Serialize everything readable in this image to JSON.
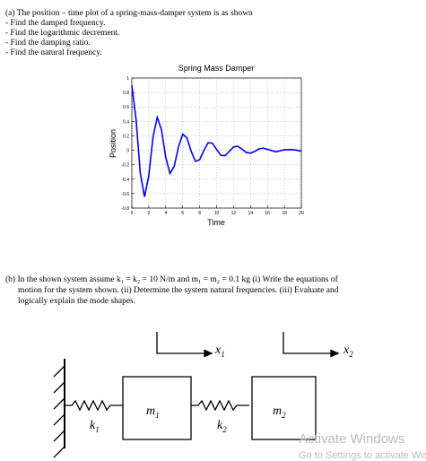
{
  "part_a": {
    "intro": "(a) The position – time plot of a spring-mass-damper system is as shown",
    "items": [
      "- Find the damped frequency.",
      "- Find the logarithmic decrement.",
      "- Find the damping ratio.",
      "- Find the natural frequency."
    ]
  },
  "chart_data": {
    "type": "line",
    "title": "Spring Mass Damper",
    "x_label": "Time",
    "y_label": "Position",
    "x": [
      0,
      0.5,
      1,
      1.5,
      2,
      2.5,
      3,
      3.5,
      4,
      4.5,
      5,
      5.5,
      6,
      6.5,
      7,
      7.5,
      8,
      8.5,
      9,
      9.5,
      10,
      10.5,
      11,
      11.5,
      12,
      12.5,
      13,
      13.5,
      14,
      14.5,
      15,
      15.5,
      16,
      17,
      18,
      19,
      20
    ],
    "series": [
      {
        "name": "Position",
        "color": "#0000ff",
        "values": [
          0.9,
          0.425,
          -0.32,
          -0.644,
          -0.351,
          0.184,
          0.457,
          0.283,
          -0.098,
          -0.321,
          -0.222,
          0.045,
          0.223,
          0.172,
          -0.013,
          -0.153,
          -0.131,
          -0.004,
          0.104,
          0.099,
          0.012,
          -0.07,
          -0.074,
          -0.016,
          0.046,
          0.055,
          0.016,
          -0.03,
          -0.04,
          -0.015,
          0.019,
          0.03,
          0.013,
          -0.021,
          0.008,
          0.009,
          -0.011
        ]
      }
    ],
    "xlim": [
      0,
      20
    ],
    "xticks": [
      0,
      2,
      4,
      6,
      8,
      10,
      12,
      14,
      16,
      18,
      20
    ],
    "ylim": [
      -0.8,
      1
    ],
    "yticks": [
      -0.8,
      -0.6,
      -0.4,
      -0.2,
      0,
      0.2,
      0.4,
      0.6,
      0.8,
      1
    ],
    "grid": true
  },
  "part_b": {
    "lines": [
      "(b) In the shown system assume k₁ = k₂ = 10 N/m and m₁ = m₂ = 0.1 kg (i) Write the equations of",
      "motion for the system shown. (ii) Determine the system natural frequencies. (iii) Evaluate and",
      "logically explain the mode shapes."
    ]
  },
  "diagram": {
    "m1": {
      "base": "m",
      "sub": "1"
    },
    "m2": {
      "base": "m",
      "sub": "2"
    },
    "k1": {
      "base": "k",
      "sub": "1"
    },
    "k2": {
      "base": "k",
      "sub": "2"
    },
    "x1": {
      "base": "x",
      "sub": "1"
    },
    "x2": {
      "base": "x",
      "sub": "2"
    }
  },
  "watermark": {
    "title": "Activate Windows",
    "subtitle": "Go to Settings to activate Windows."
  }
}
